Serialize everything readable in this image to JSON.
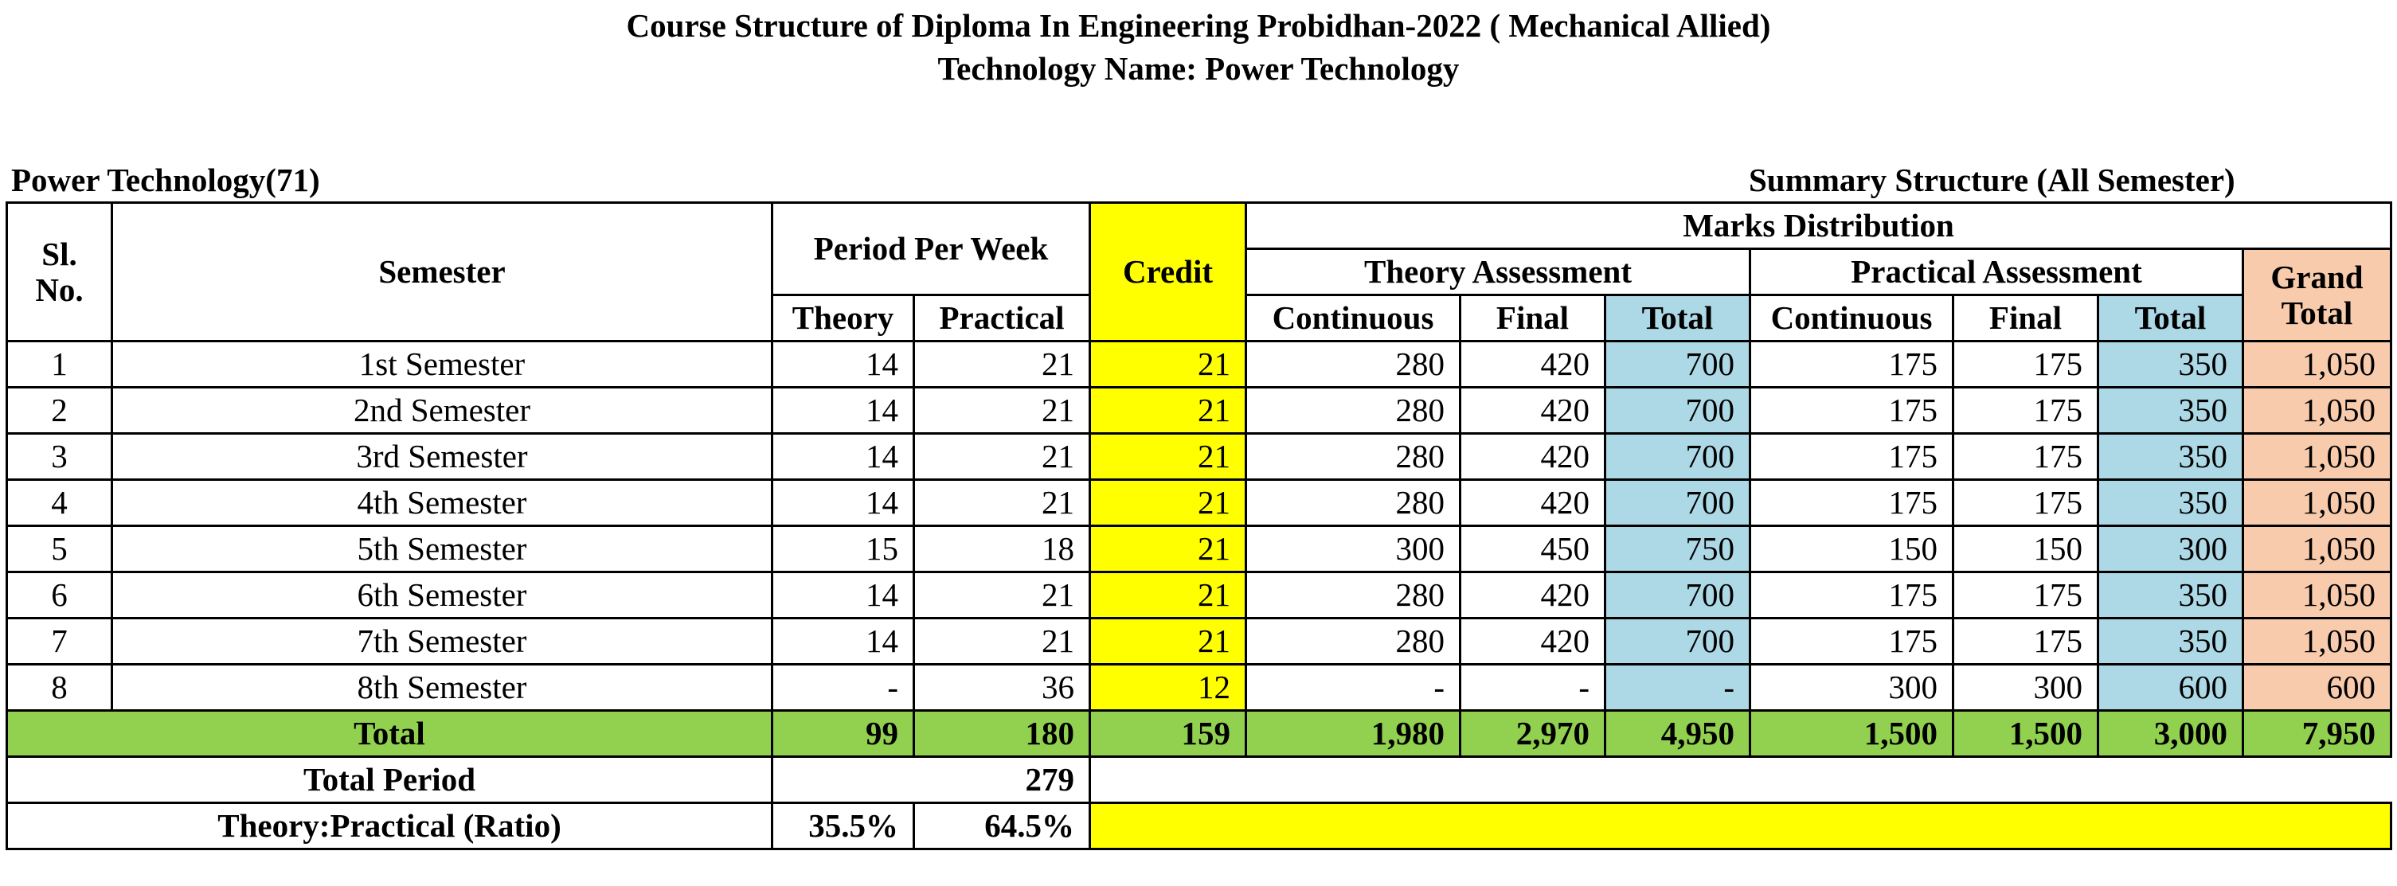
{
  "title_line1": "Course Structure of Diploma In Engineering Probidhan-2022 ( Mechanical Allied)",
  "title_line2": "Technology Name: Power Technology",
  "left_label": "Power Technology(71)",
  "right_label": "Summary Structure (All Semester)",
  "headers": {
    "sl_no": "Sl. No.",
    "semester": "Semester",
    "period_per_week": "Period Per Week",
    "credit": "Credit",
    "marks_distribution": "Marks Distribution",
    "theory_assessment": "Theory Assessment",
    "practical_assessment": "Practical Assessment",
    "grand_total": "Grand Total",
    "theory": "Theory",
    "practical": "Practical",
    "continuous": "Continuous",
    "final": "Final",
    "total": "Total"
  },
  "rows": [
    {
      "sl": "1",
      "semester": "1st Semester",
      "theory": "14",
      "practical": "21",
      "credit": "21",
      "th_cont": "280",
      "th_final": "420",
      "th_total": "700",
      "pr_cont": "175",
      "pr_final": "175",
      "pr_total": "350",
      "grand_total": "1,050"
    },
    {
      "sl": "2",
      "semester": "2nd Semester",
      "theory": "14",
      "practical": "21",
      "credit": "21",
      "th_cont": "280",
      "th_final": "420",
      "th_total": "700",
      "pr_cont": "175",
      "pr_final": "175",
      "pr_total": "350",
      "grand_total": "1,050"
    },
    {
      "sl": "3",
      "semester": "3rd Semester",
      "theory": "14",
      "practical": "21",
      "credit": "21",
      "th_cont": "280",
      "th_final": "420",
      "th_total": "700",
      "pr_cont": "175",
      "pr_final": "175",
      "pr_total": "350",
      "grand_total": "1,050"
    },
    {
      "sl": "4",
      "semester": "4th Semester",
      "theory": "14",
      "practical": "21",
      "credit": "21",
      "th_cont": "280",
      "th_final": "420",
      "th_total": "700",
      "pr_cont": "175",
      "pr_final": "175",
      "pr_total": "350",
      "grand_total": "1,050"
    },
    {
      "sl": "5",
      "semester": "5th Semester",
      "theory": "15",
      "practical": "18",
      "credit": "21",
      "th_cont": "300",
      "th_final": "450",
      "th_total": "750",
      "pr_cont": "150",
      "pr_final": "150",
      "pr_total": "300",
      "grand_total": "1,050"
    },
    {
      "sl": "6",
      "semester": "6th Semester",
      "theory": "14",
      "practical": "21",
      "credit": "21",
      "th_cont": "280",
      "th_final": "420",
      "th_total": "700",
      "pr_cont": "175",
      "pr_final": "175",
      "pr_total": "350",
      "grand_total": "1,050"
    },
    {
      "sl": "7",
      "semester": "7th Semester",
      "theory": "14",
      "practical": "21",
      "credit": "21",
      "th_cont": "280",
      "th_final": "420",
      "th_total": "700",
      "pr_cont": "175",
      "pr_final": "175",
      "pr_total": "350",
      "grand_total": "1,050"
    },
    {
      "sl": "8",
      "semester": "8th Semester",
      "theory": "-",
      "practical": "36",
      "credit": "12",
      "th_cont": "-",
      "th_final": "-",
      "th_total": "-",
      "pr_cont": "300",
      "pr_final": "300",
      "pr_total": "600",
      "grand_total": "600"
    }
  ],
  "totals": {
    "label": "Total",
    "theory": "99",
    "practical": "180",
    "credit": "159",
    "th_cont": "1,980",
    "th_final": "2,970",
    "th_total": "4,950",
    "pr_cont": "1,500",
    "pr_final": "1,500",
    "pr_total": "3,000",
    "grand_total": "7,950"
  },
  "total_period": {
    "label": "Total Period",
    "value": "279"
  },
  "ratio": {
    "label": "Theory:Practical (Ratio)",
    "theory": "35.5%",
    "practical": "64.5%"
  },
  "colors": {
    "credit_fill": "#ffff00",
    "total_fill": "#add8e6",
    "grand_total_fill": "#f8cbad",
    "total_row_fill": "#92d050"
  }
}
